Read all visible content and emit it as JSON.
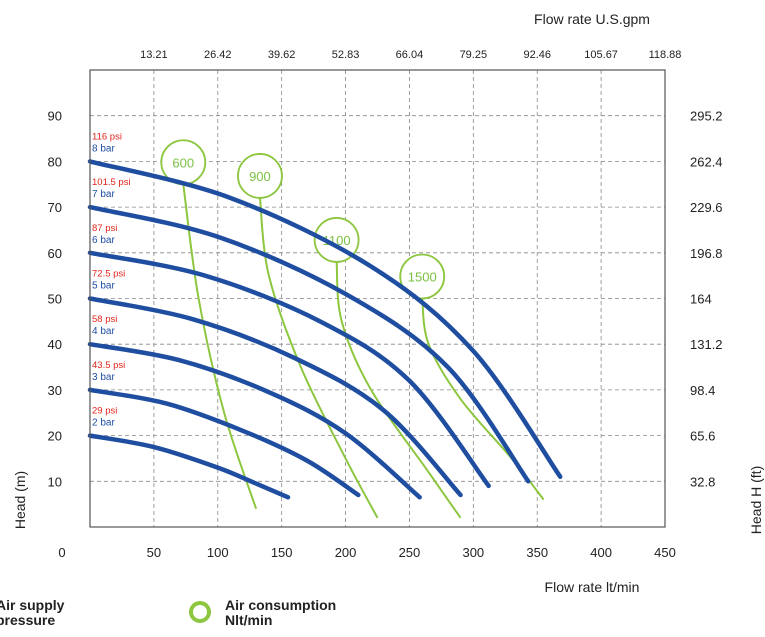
{
  "chart_data": {
    "type": "line",
    "x_axis": {
      "label": "Flow rate  lt/min",
      "range": [
        0,
        450
      ],
      "ticks": [
        "0",
        "50",
        "100",
        "150",
        "200",
        "250",
        "300",
        "350",
        "400",
        "450"
      ]
    },
    "x2_axis": {
      "label": "Flow rate U.S.gpm",
      "ticks": [
        "13.21",
        "26.42",
        "39.62",
        "52.83",
        "66.04",
        "79.25",
        "92.46",
        "105.67",
        "118.88"
      ]
    },
    "y_axis": {
      "label": "Head (m)",
      "range": [
        0,
        100
      ],
      "ticks": [
        "10",
        "20",
        "30",
        "40",
        "50",
        "60",
        "70",
        "80",
        "90"
      ]
    },
    "y2_axis": {
      "label": "Head H (ft)",
      "ticks": [
        "32.8",
        "65.6",
        "98.4",
        "131.2",
        "164",
        "196.8",
        "229.6",
        "262.4",
        "295.2"
      ]
    },
    "grid": true,
    "series": [
      {
        "psi": "29 psi",
        "bar": "2 bar",
        "x": [
          0,
          50,
          100,
          130,
          155
        ],
        "y": [
          20,
          17.5,
          13,
          9.5,
          6.5
        ]
      },
      {
        "psi": "43.5 psi",
        "bar": "3 bar",
        "x": [
          0,
          60,
          120,
          170,
          210
        ],
        "y": [
          30,
          27,
          21,
          14.5,
          7
        ]
      },
      {
        "psi": "58 psi",
        "bar": "4 bar",
        "x": [
          0,
          70,
          140,
          200,
          258
        ],
        "y": [
          40,
          36.5,
          29.5,
          20.5,
          6.5
        ]
      },
      {
        "psi": "72.5 psi",
        "bar": "5 bar",
        "x": [
          0,
          80,
          160,
          230,
          290
        ],
        "y": [
          50,
          45.5,
          37,
          25.5,
          7
        ]
      },
      {
        "psi": "87 psi",
        "bar": "6 bar",
        "x": [
          0,
          90,
          180,
          250,
          312
        ],
        "y": [
          60,
          55,
          45,
          32,
          9
        ]
      },
      {
        "psi": "101.5 psi",
        "bar": "7 bar",
        "x": [
          0,
          100,
          200,
          280,
          343
        ],
        "y": [
          70,
          63.5,
          51,
          35,
          10
        ]
      },
      {
        "psi": "116 psi",
        "bar": "8 bar",
        "x": [
          0,
          110,
          220,
          300,
          368
        ],
        "y": [
          80,
          72,
          57,
          38.5,
          11
        ]
      }
    ],
    "air_consumption": [
      {
        "label": "600",
        "x": [
          73,
          85,
          105,
          130
        ],
        "y": [
          75,
          50,
          25,
          4
        ]
      },
      {
        "label": "900",
        "x": [
          133,
          140,
          165,
          200,
          225
        ],
        "y": [
          72,
          55,
          35,
          15,
          2
        ]
      },
      {
        "label": "1100",
        "x": [
          193,
          197,
          220,
          265,
          290
        ],
        "y": [
          58,
          45,
          30,
          12,
          2
        ]
      },
      {
        "label": "1500",
        "x": [
          260,
          265,
          290,
          330,
          355
        ],
        "y": [
          50,
          40,
          28,
          15,
          6
        ]
      }
    ],
    "legend": [
      {
        "text": "Air supply\npressure"
      },
      {
        "text": "Air consumption\nNlt/min"
      }
    ]
  }
}
